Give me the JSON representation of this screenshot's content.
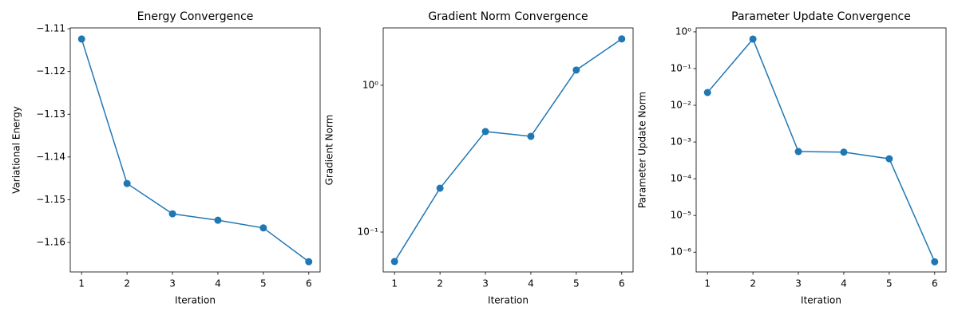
{
  "chart_data": [
    {
      "type": "line",
      "title": "Energy Convergence",
      "x_label": "Iteration",
      "y_label": "Variational Energy",
      "x": [
        1,
        2,
        3,
        4,
        5,
        6
      ],
      "color": "#1f77b4",
      "values": [
        -1.1124,
        -1.1462,
        -1.1533,
        -1.1548,
        -1.1566,
        -1.1645
      ],
      "xlim": [
        0.75,
        6.25
      ],
      "xticks": [
        1,
        2,
        3,
        4,
        5,
        6
      ],
      "ylim": [
        -1.1669,
        -1.1098
      ],
      "yscale": "linear",
      "yticks": [
        {
          "value": -1.16,
          "label": "−1.16"
        },
        {
          "value": -1.15,
          "label": "−1.15"
        },
        {
          "value": -1.14,
          "label": "−1.14"
        },
        {
          "value": -1.13,
          "label": "−1.13"
        },
        {
          "value": -1.12,
          "label": "−1.12"
        },
        {
          "value": -1.11,
          "label": "−1.11"
        }
      ]
    },
    {
      "type": "line",
      "title": "Gradient Norm Convergence",
      "x_label": "Iteration",
      "y_label": "Gradient Norm",
      "x": [
        1,
        2,
        3,
        4,
        5,
        6
      ],
      "color": "#1f77b4",
      "values": [
        0.063,
        0.199,
        0.484,
        0.449,
        1.27,
        2.07
      ],
      "xlim": [
        0.75,
        6.25
      ],
      "xticks": [
        1,
        2,
        3,
        4,
        5,
        6
      ],
      "ylim": [
        0.0535,
        2.46
      ],
      "yscale": "log",
      "yticks": [
        {
          "value": 0.1,
          "label": "10⁻¹"
        },
        {
          "value": 1,
          "label": "10⁰"
        }
      ]
    },
    {
      "type": "line",
      "title": "Parameter Update Convergence",
      "x_label": "Iteration",
      "y_label": "Parameter Update Norm",
      "x": [
        1,
        2,
        3,
        4,
        5,
        6
      ],
      "color": "#1f77b4",
      "values": [
        0.0223,
        0.637,
        0.00055,
        0.00053,
        0.00035,
        5.5e-07
      ],
      "xlim": [
        0.75,
        6.25
      ],
      "xticks": [
        1,
        2,
        3,
        4,
        5,
        6
      ],
      "ylim": [
        2.9e-07,
        1.28
      ],
      "yscale": "log",
      "yticks": [
        {
          "value": 1e-06,
          "label": "10⁻⁶"
        },
        {
          "value": 1e-05,
          "label": "10⁻⁵"
        },
        {
          "value": 0.0001,
          "label": "10⁻⁴"
        },
        {
          "value": 0.001,
          "label": "10⁻³"
        },
        {
          "value": 0.01,
          "label": "10⁻²"
        },
        {
          "value": 0.1,
          "label": "10⁻¹"
        },
        {
          "value": 1,
          "label": "10⁰"
        }
      ]
    }
  ]
}
